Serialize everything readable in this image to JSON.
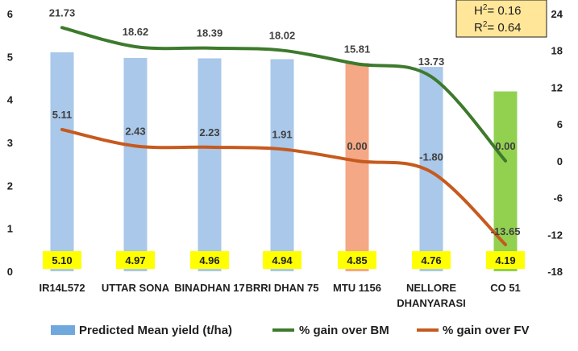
{
  "chart_data": {
    "type": "bar",
    "categories": [
      [
        "IR14L572"
      ],
      [
        "UTTAR SONA"
      ],
      [
        "BINADHAN 17"
      ],
      [
        "BRRI DHAN 75"
      ],
      [
        "MTU 1156"
      ],
      [
        "NELLORE",
        "DHANYARASI"
      ],
      [
        "CO 51"
      ]
    ],
    "bar_series": {
      "name": "Predicted Mean yield (t/ha)",
      "values": [
        5.1,
        4.97,
        4.96,
        4.94,
        4.85,
        4.76,
        4.19
      ],
      "value_labels": [
        "5.10",
        "4.97",
        "4.96",
        "4.94",
        "4.85",
        "4.76",
        "4.19"
      ],
      "colors": [
        "#a9c8ea",
        "#a9c8ea",
        "#a9c8ea",
        "#a9c8ea",
        "#f4a885",
        "#a9c8ea",
        "#92d050"
      ],
      "legend_color": "#6fa8dc"
    },
    "line_series": [
      {
        "name": "% gain over BM",
        "color": "#3d7a2c",
        "values": [
          21.73,
          18.62,
          18.39,
          18.02,
          15.81,
          13.73,
          0.0
        ],
        "value_labels": [
          "21.73",
          "18.62",
          "18.39",
          "18.02",
          "15.81",
          "13.73",
          "0.00"
        ]
      },
      {
        "name": "% gain over FV",
        "color": "#c65a1e",
        "values": [
          5.11,
          2.43,
          2.23,
          1.91,
          0.0,
          -1.8,
          -13.65
        ],
        "value_labels": [
          "5.11",
          "2.43",
          "2.23",
          "1.91",
          "0.00",
          "-1.80",
          "-13.65"
        ]
      }
    ],
    "y_left": {
      "ticks": [
        "0",
        "1",
        "2",
        "3",
        "4",
        "5",
        "6"
      ],
      "min": 0,
      "max": 6
    },
    "y_right": {
      "ticks": [
        "-18",
        "-12",
        "-6",
        "0",
        "6",
        "12",
        "18",
        "24"
      ],
      "min": -18,
      "max": 24
    },
    "stats_box": {
      "h2": "= 0.16",
      "r2": "= 0.64"
    },
    "legend_position": "bottom",
    "grid": false
  }
}
